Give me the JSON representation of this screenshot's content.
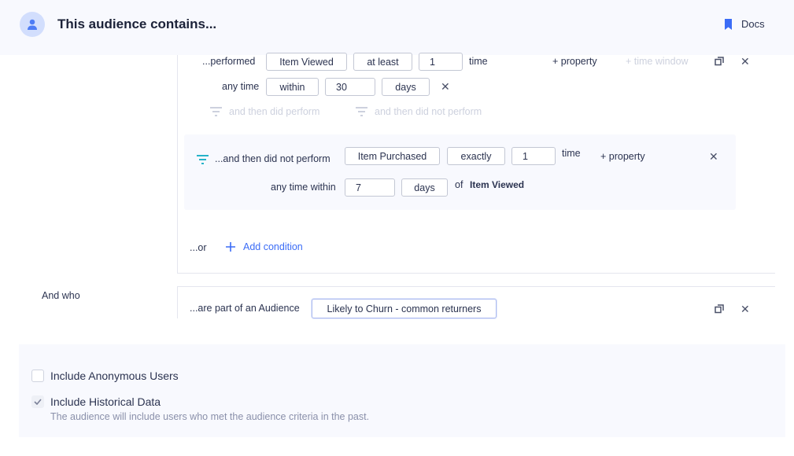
{
  "header": {
    "title": "This audience contains...",
    "docs_label": "Docs",
    "icons": {
      "avatar": "user-icon",
      "docs": "bookmark-icon"
    }
  },
  "condition": {
    "performed_label": "...performed",
    "event": "Item Viewed",
    "frequency": "at least",
    "count": "1",
    "time_label": "time",
    "add_property": "+ property",
    "add_time_window": "+ time window",
    "any_time_label": "any time",
    "window_type": "within",
    "window_value": "30",
    "window_unit": "days",
    "then_did_perform": "and then did perform",
    "then_did_not_perform": "and then did not perform"
  },
  "sub_condition": {
    "label": "...and then did not perform",
    "event": "Item Purchased",
    "frequency": "exactly",
    "count": "1",
    "time_label": "time",
    "add_property": "+ property",
    "any_time_within": "any time within",
    "window_value": "7",
    "window_unit": "days",
    "of_label": "of",
    "of_event": "Item Viewed"
  },
  "or": {
    "label": "...or",
    "add_condition": "Add condition"
  },
  "and_who": {
    "label": "And who",
    "part_of_label": "...are part of an Audience",
    "audience": "Likely to Churn - common returners"
  },
  "options": {
    "anonymous": {
      "label": "Include Anonymous Users",
      "checked": false
    },
    "historical": {
      "label": "Include Historical Data",
      "checked": true,
      "description": "The audience will include users who met the audience criteria in the past."
    }
  },
  "colors": {
    "accent": "#3b6cf6",
    "teal": "#26b3c9",
    "header_bg": "#f8f9fe"
  }
}
